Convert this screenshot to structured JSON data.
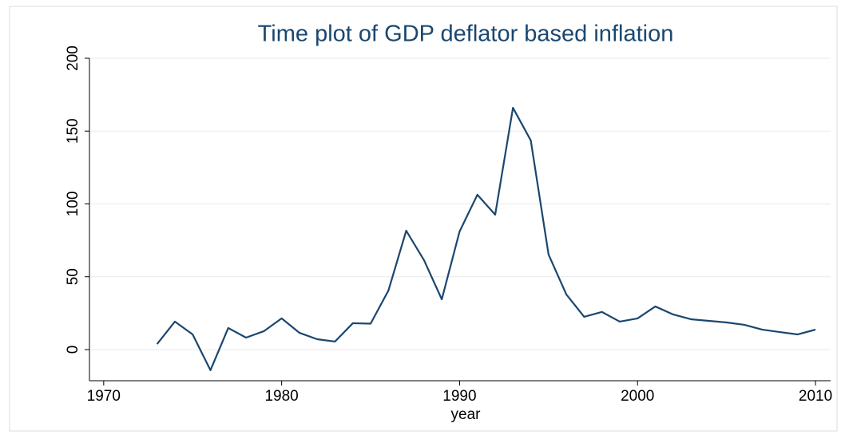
{
  "chart_data": {
    "type": "line",
    "title": "Time plot of GDP deflator based inflation",
    "xlabel": "year",
    "x": [
      1973,
      1974,
      1975,
      1976,
      1977,
      1978,
      1979,
      1980,
      1981,
      1982,
      1983,
      1984,
      1985,
      1986,
      1987,
      1988,
      1989,
      1990,
      1991,
      1992,
      1993,
      1994,
      1995,
      1996,
      1997,
      1998,
      1999,
      2000,
      2001,
      2002,
      2003,
      2004,
      2005,
      2006,
      2007,
      2008,
      2009,
      2010
    ],
    "series": [
      {
        "name": "inflation",
        "color": "#1a476f",
        "values": [
          3.8,
          19.2,
          10.4,
          -14.2,
          14.8,
          8.2,
          12.6,
          21.4,
          11.5,
          7.1,
          5.5,
          18.1,
          17.8,
          40.5,
          81.6,
          61.4,
          34.5,
          81.1,
          106.3,
          92.6,
          166,
          143.6,
          65.2,
          37.8,
          22.5,
          25.8,
          19.2,
          21.4,
          29.6,
          24.1,
          20.8,
          19.7,
          18.6,
          17,
          13.7,
          12,
          10.4,
          13.7
        ]
      }
    ],
    "xlim": [
      1969.2,
      2010.85
    ],
    "xticks": [
      1970,
      1980,
      1990,
      2000,
      2010
    ],
    "ylim": [
      -21.4,
      200
    ],
    "yticks": [
      0,
      50,
      100,
      150,
      200
    ],
    "grid": true
  }
}
